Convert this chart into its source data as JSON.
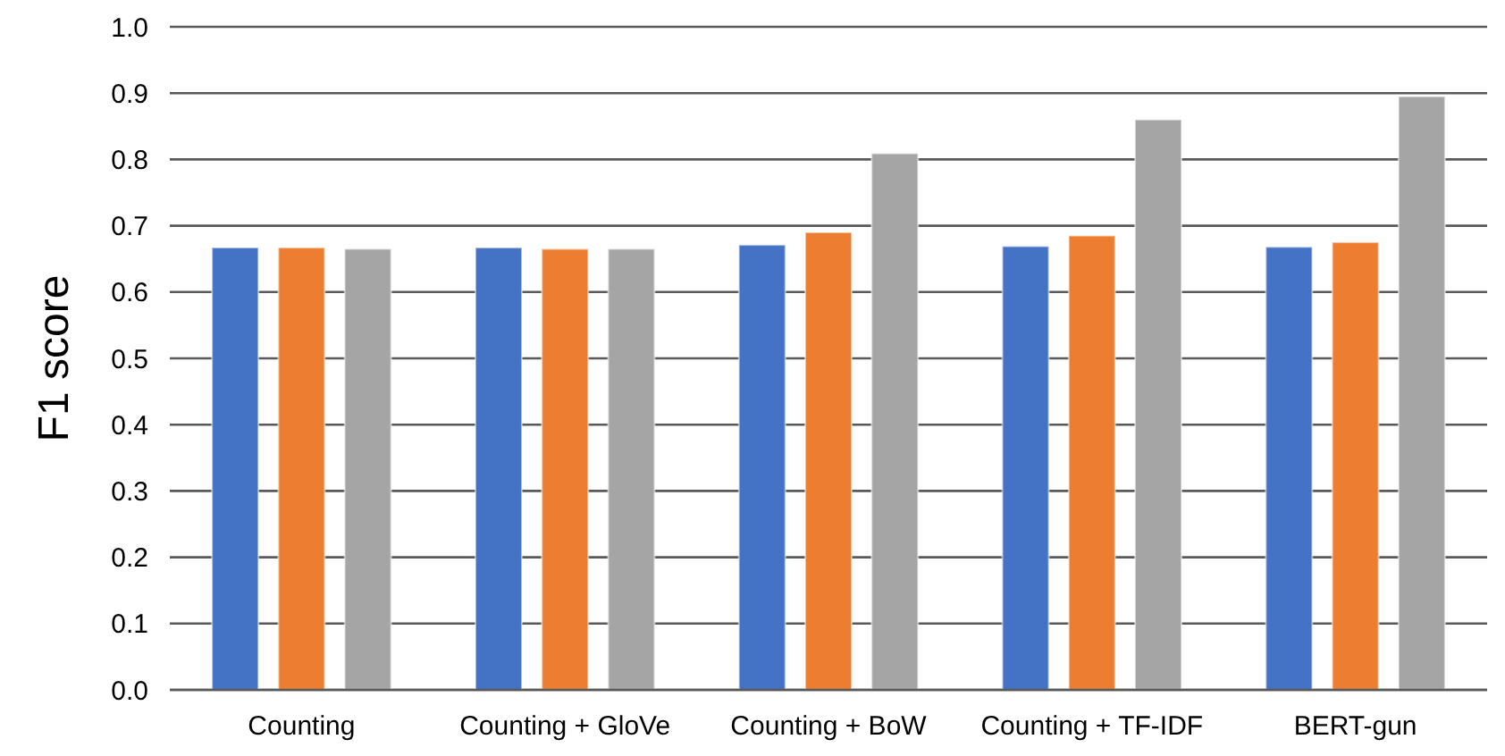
{
  "chart_data": {
    "type": "bar",
    "ylabel": "F1 score",
    "categories": [
      "Counting",
      "Counting + GloVe",
      "Counting + BoW",
      "Counting + TF-IDF",
      "BERT-gun"
    ],
    "series": [
      {
        "color": "#4472c4",
        "values": [
          0.667,
          0.667,
          0.671,
          0.669,
          0.668
        ]
      },
      {
        "color": "#ed7d31",
        "values": [
          0.667,
          0.665,
          0.69,
          0.685,
          0.675
        ]
      },
      {
        "color": "#a5a5a5",
        "values": [
          0.665,
          0.665,
          0.809,
          0.86,
          0.895
        ]
      }
    ],
    "ylim": [
      0,
      1
    ],
    "yticks": [
      {
        "value": 0,
        "label": "0.0"
      },
      {
        "value": 0.1,
        "label": "0.1"
      },
      {
        "value": 0.2,
        "label": "0.2"
      },
      {
        "value": 0.3,
        "label": "0.3"
      },
      {
        "value": 0.4,
        "label": "0.4"
      },
      {
        "value": 0.5,
        "label": "0.5"
      },
      {
        "value": 0.6,
        "label": "0.6"
      },
      {
        "value": 0.7,
        "label": "0.7"
      },
      {
        "value": 0.8,
        "label": "0.8"
      },
      {
        "value": 0.9,
        "label": "0.9"
      },
      {
        "value": 1,
        "label": "1.0"
      }
    ],
    "grid": "y"
  }
}
